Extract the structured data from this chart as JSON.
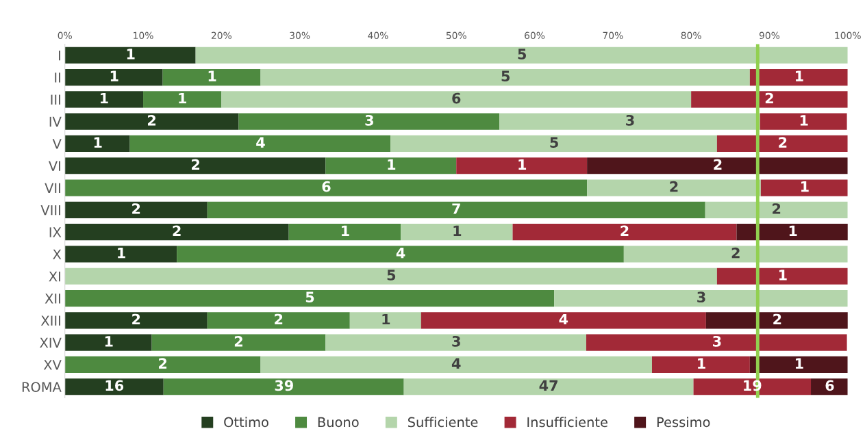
{
  "chart_data": {
    "type": "bar",
    "orientation": "horizontal",
    "stacked": true,
    "categories": [
      "I",
      "II",
      "III",
      "IV",
      "V",
      "VI",
      "VII",
      "VIII",
      "IX",
      "X",
      "XI",
      "XII",
      "XIII",
      "XIV",
      "XV",
      "ROMA"
    ],
    "series": [
      {
        "name": "Ottimo",
        "color": "#243f20",
        "values": [
          16.7,
          12.5,
          10,
          22.2,
          8.3,
          33.3,
          0,
          18.2,
          28.6,
          14.3,
          0,
          0,
          18.2,
          11.1,
          0,
          12.6
        ]
      },
      {
        "name": "Buono",
        "color": "#4e8a40",
        "values": [
          0,
          12.5,
          10,
          33.3,
          33.3,
          16.7,
          66.7,
          63.6,
          14.3,
          57.1,
          0,
          62.5,
          18.2,
          22.2,
          25,
          30.7
        ]
      },
      {
        "name": "Sufficiente",
        "color": "#b4d5ab",
        "values": [
          83.3,
          62.5,
          60,
          33.3,
          41.7,
          0,
          22.2,
          18.2,
          14.3,
          28.6,
          83.3,
          37.5,
          9.1,
          33.3,
          50,
          37.0
        ]
      },
      {
        "name": "Insufficiente",
        "color": "#a22937",
        "values": [
          0,
          12.5,
          20,
          11.1,
          16.7,
          16.7,
          11.1,
          0,
          28.6,
          0,
          16.7,
          0,
          36.4,
          33.3,
          12.5,
          15.0
        ]
      },
      {
        "name": "Pessimo",
        "color": "#4f151b",
        "values": [
          0,
          0,
          0,
          0,
          0,
          33.3,
          0,
          0,
          14.3,
          0,
          0,
          0,
          18.2,
          0,
          12.5,
          4.7
        ]
      }
    ],
    "xlim": [
      0,
      100
    ],
    "xticks": [
      {
        "value": 0,
        "label": "0%"
      },
      {
        "value": 10,
        "label": "10%"
      },
      {
        "value": 20,
        "label": "20%"
      },
      {
        "value": 30,
        "label": "30%"
      },
      {
        "value": 40,
        "label": "40%"
      },
      {
        "value": 50,
        "label": "50%"
      },
      {
        "value": 60,
        "label": "60%"
      },
      {
        "value": 70,
        "label": "70%"
      },
      {
        "value": 80,
        "label": "80%"
      },
      {
        "value": 90,
        "label": "90%"
      },
      {
        "value": 100,
        "label": "100%"
      }
    ],
    "ref_lines": [
      {
        "axis": "x",
        "value": 88.5,
        "color": "#92d050"
      }
    ],
    "annotations": [
      {
        "text": "1",
        "x": 8.4,
        "y": "I"
      },
      {
        "text": "5",
        "x": 58.4,
        "y": "I"
      },
      {
        "text": "1",
        "x": 6.3,
        "y": "II"
      },
      {
        "text": "1",
        "x": 18.8,
        "y": "II"
      },
      {
        "text": "5",
        "x": 56.3,
        "y": "II"
      },
      {
        "text": "1",
        "x": 93.8,
        "y": "II"
      },
      {
        "text": "1",
        "x": 5,
        "y": "III"
      },
      {
        "text": "1",
        "x": 15,
        "y": "III"
      },
      {
        "text": "6",
        "x": 50,
        "y": "III"
      },
      {
        "text": "2",
        "x": 90,
        "y": "III"
      },
      {
        "text": "2",
        "x": 11.1,
        "y": "IV"
      },
      {
        "text": "3",
        "x": 38.9,
        "y": "IV"
      },
      {
        "text": "3",
        "x": 72.2,
        "y": "IV"
      },
      {
        "text": "1",
        "x": 94.4,
        "y": "IV"
      },
      {
        "text": "1",
        "x": 4.2,
        "y": "V"
      },
      {
        "text": "4",
        "x": 25,
        "y": "V"
      },
      {
        "text": "5",
        "x": 62.5,
        "y": "V"
      },
      {
        "text": "2",
        "x": 91.7,
        "y": "V"
      },
      {
        "text": "2",
        "x": 16.7,
        "y": "VI"
      },
      {
        "text": "1",
        "x": 41.7,
        "y": "VI"
      },
      {
        "text": "1",
        "x": 58.4,
        "y": "VI"
      },
      {
        "text": "2",
        "x": 83.4,
        "y": "VI"
      },
      {
        "text": "6",
        "x": 33.4,
        "y": "VII"
      },
      {
        "text": "2",
        "x": 77.8,
        "y": "VII"
      },
      {
        "text": "1",
        "x": 94.5,
        "y": "VII"
      },
      {
        "text": "2",
        "x": 9.1,
        "y": "VIII"
      },
      {
        "text": "7",
        "x": 50,
        "y": "VIII"
      },
      {
        "text": "2",
        "x": 90.9,
        "y": "VIII"
      },
      {
        "text": "2",
        "x": 14.3,
        "y": "IX"
      },
      {
        "text": "1",
        "x": 35.8,
        "y": "IX"
      },
      {
        "text": "1",
        "x": 50.1,
        "y": "IX"
      },
      {
        "text": "2",
        "x": 71.5,
        "y": "IX"
      },
      {
        "text": "1",
        "x": 93,
        "y": "IX"
      },
      {
        "text": "1",
        "x": 7.2,
        "y": "X"
      },
      {
        "text": "4",
        "x": 42.9,
        "y": "X"
      },
      {
        "text": "2",
        "x": 85.7,
        "y": "X"
      },
      {
        "text": "5",
        "x": 41.7,
        "y": "XI"
      },
      {
        "text": "1",
        "x": 91.7,
        "y": "XI"
      },
      {
        "text": "5",
        "x": 31.3,
        "y": "XII"
      },
      {
        "text": "3",
        "x": 81.3,
        "y": "XII"
      },
      {
        "text": "2",
        "x": 9.1,
        "y": "XIII"
      },
      {
        "text": "2",
        "x": 27.3,
        "y": "XIII"
      },
      {
        "text": "1",
        "x": 41,
        "y": "XIII"
      },
      {
        "text": "4",
        "x": 63.7,
        "y": "XIII"
      },
      {
        "text": "2",
        "x": 91,
        "y": "XIII"
      },
      {
        "text": "1",
        "x": 5.6,
        "y": "XIV"
      },
      {
        "text": "2",
        "x": 22.2,
        "y": "XIV"
      },
      {
        "text": "3",
        "x": 50,
        "y": "XIV"
      },
      {
        "text": "3",
        "x": 83.3,
        "y": "XIV"
      },
      {
        "text": "2",
        "x": 12.5,
        "y": "XV"
      },
      {
        "text": "4",
        "x": 50,
        "y": "XV"
      },
      {
        "text": "1",
        "x": 81.3,
        "y": "XV"
      },
      {
        "text": "1",
        "x": 93.8,
        "y": "XV"
      },
      {
        "text": "16",
        "x": 6.3,
        "y": "ROMA"
      },
      {
        "text": "39",
        "x": 28,
        "y": "ROMA"
      },
      {
        "text": "47",
        "x": 61.8,
        "y": "ROMA"
      },
      {
        "text": "19",
        "x": 87.8,
        "y": "ROMA"
      },
      {
        "text": "6",
        "x": 97.7,
        "y": "ROMA"
      }
    ],
    "grid": false,
    "legend": "bottom"
  }
}
